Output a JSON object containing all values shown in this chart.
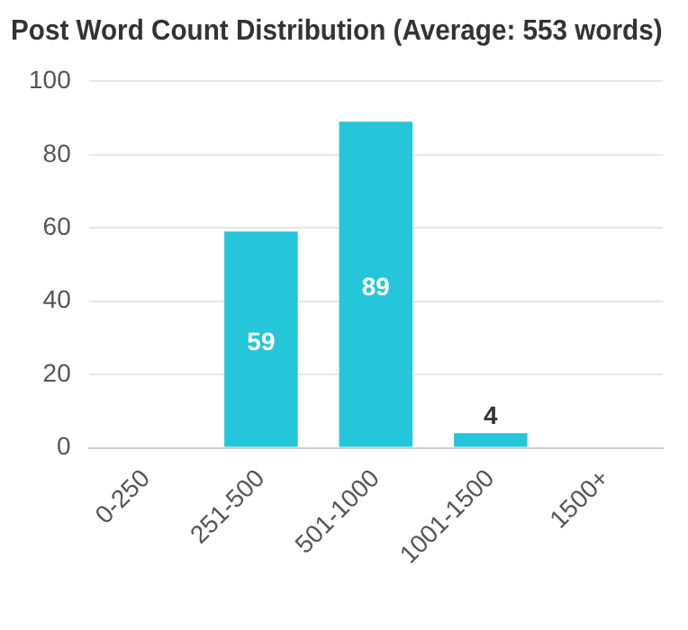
{
  "chart_data": {
    "type": "bar",
    "title": "Post Word Count Distribution (Average: 553 words)",
    "categories": [
      "0-250",
      "251-500",
      "501-1000",
      "1001-1500",
      "1500+"
    ],
    "values": [
      0,
      59,
      89,
      4,
      0
    ],
    "value_labels": [
      null,
      "59",
      "89",
      "4",
      null
    ],
    "color": "#26c6da",
    "ylim": [
      0,
      100
    ],
    "yticks": [
      0,
      20,
      40,
      60,
      80,
      100
    ],
    "grid": "y",
    "legend": false
  }
}
